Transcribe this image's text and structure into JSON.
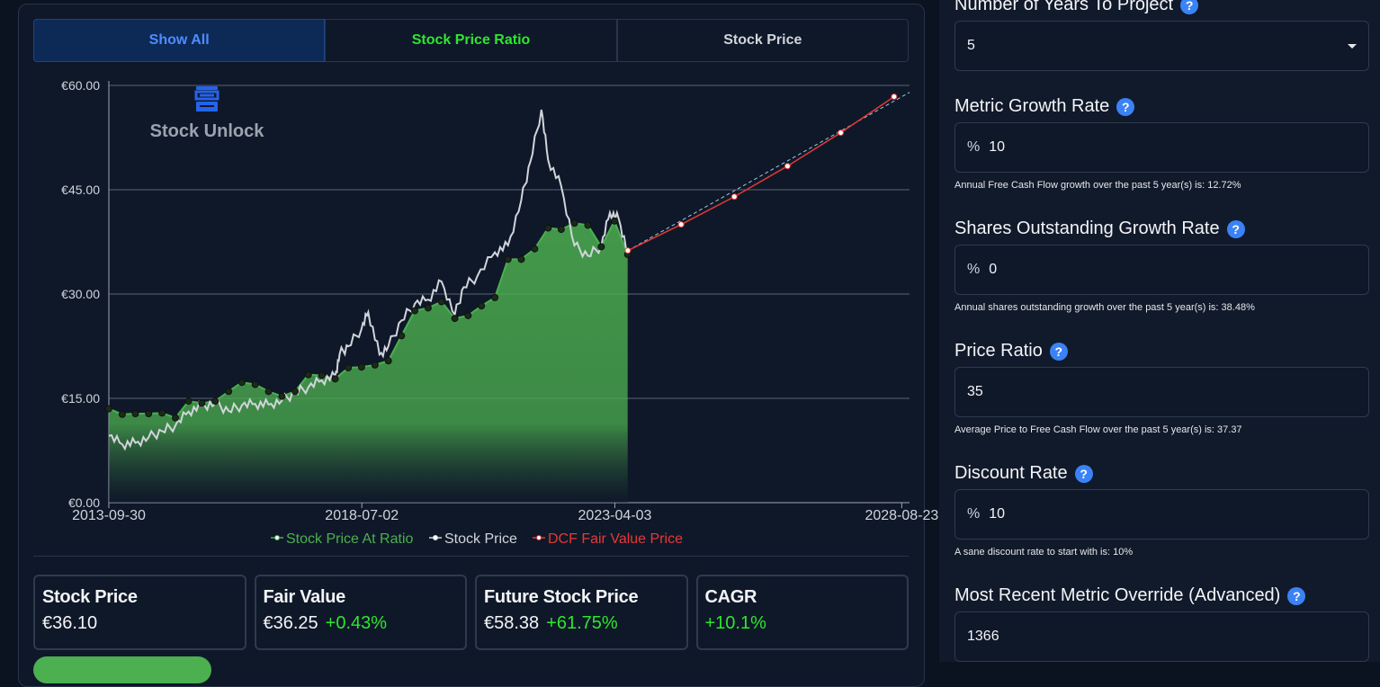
{
  "tabs": [
    {
      "label": "Show All"
    },
    {
      "label": "Stock Price Ratio"
    },
    {
      "label": "Stock Price"
    }
  ],
  "watermark": "Stock Unlock",
  "colors": {
    "ratio": "#4caf50",
    "price": "#d1d5db",
    "dcf": "#e53935",
    "accent": "#3b82f6",
    "positive": "#2ee62e"
  },
  "chart_data": {
    "type": "line",
    "y_ticks": [
      "€60.00",
      "€45.00",
      "€30.00",
      "€15.00",
      "€0.00"
    ],
    "x_ticks": [
      "2013-09-30",
      "2018-07-02",
      "2023-04-03",
      "2028-08-23"
    ],
    "ylim": [
      0,
      60
    ],
    "x_range": [
      "2013-09-30",
      "2028-10-15"
    ],
    "legend": [
      "Stock Price At Ratio",
      "Stock Price",
      "DCF Fair Value Price"
    ],
    "legend_position": "bottom",
    "series": [
      {
        "name": "Stock Price At Ratio",
        "type": "area",
        "points": [
          [
            "2013-09-30",
            13.5
          ],
          [
            "2013-12-31",
            12.7
          ],
          [
            "2014-03-31",
            12.8
          ],
          [
            "2014-06-30",
            12.8
          ],
          [
            "2014-09-30",
            12.9
          ],
          [
            "2014-12-31",
            12.2
          ],
          [
            "2015-03-31",
            14.6
          ],
          [
            "2015-06-30",
            14.3
          ],
          [
            "2015-09-30",
            14.6
          ],
          [
            "2015-12-31",
            16.0
          ],
          [
            "2016-03-31",
            17.3
          ],
          [
            "2016-06-30",
            17.0
          ],
          [
            "2016-09-30",
            16.0
          ],
          [
            "2016-12-31",
            15.3
          ],
          [
            "2017-03-31",
            16.0
          ],
          [
            "2017-06-30",
            18.4
          ],
          [
            "2017-09-30",
            18.3
          ],
          [
            "2017-12-31",
            17.8
          ],
          [
            "2018-03-31",
            19.4
          ],
          [
            "2018-06-30",
            19.5
          ],
          [
            "2018-09-30",
            19.8
          ],
          [
            "2018-12-31",
            20.4
          ],
          [
            "2019-03-31",
            24.0
          ],
          [
            "2019-06-30",
            27.6
          ],
          [
            "2019-09-30",
            28.0
          ],
          [
            "2019-12-31",
            28.9
          ],
          [
            "2020-03-31",
            26.5
          ],
          [
            "2020-06-30",
            26.9
          ],
          [
            "2020-09-30",
            28.3
          ],
          [
            "2020-12-31",
            29.5
          ],
          [
            "2021-03-31",
            35.0
          ],
          [
            "2021-06-30",
            35.0
          ],
          [
            "2021-09-30",
            36.5
          ],
          [
            "2021-12-31",
            39.5
          ],
          [
            "2022-03-31",
            39.3
          ],
          [
            "2022-06-30",
            40.2
          ],
          [
            "2022-09-30",
            39.9
          ],
          [
            "2022-12-31",
            36.8
          ],
          [
            "2023-03-31",
            40.5
          ],
          [
            "2023-06-30",
            35.7
          ]
        ]
      },
      {
        "name": "Stock Price",
        "type": "line",
        "points": [
          [
            "2013-09-30",
            9.6
          ],
          [
            "2013-12-31",
            8.4
          ],
          [
            "2014-03-31",
            8.6
          ],
          [
            "2014-06-30",
            9.4
          ],
          [
            "2014-09-30",
            10.3
          ],
          [
            "2014-12-31",
            11.1
          ],
          [
            "2015-03-31",
            13.1
          ],
          [
            "2015-06-30",
            13.9
          ],
          [
            "2015-09-30",
            14.3
          ],
          [
            "2015-12-31",
            13.2
          ],
          [
            "2016-03-31",
            14.0
          ],
          [
            "2016-06-30",
            14.2
          ],
          [
            "2016-09-30",
            14.1
          ],
          [
            "2016-12-31",
            14.7
          ],
          [
            "2017-03-31",
            15.8
          ],
          [
            "2017-06-30",
            16.6
          ],
          [
            "2017-09-30",
            17.6
          ],
          [
            "2017-12-31",
            18.2
          ],
          [
            "2018-01-31",
            21.4
          ],
          [
            "2018-03-31",
            22.5
          ],
          [
            "2018-06-30",
            25.0
          ],
          [
            "2018-08-15",
            27.4
          ],
          [
            "2018-10-31",
            21.3
          ],
          [
            "2018-12-31",
            22.5
          ],
          [
            "2019-03-31",
            26.2
          ],
          [
            "2019-06-30",
            28.6
          ],
          [
            "2019-09-30",
            29.2
          ],
          [
            "2019-12-31",
            31.8
          ],
          [
            "2020-03-31",
            27.0
          ],
          [
            "2020-05-31",
            31.0
          ],
          [
            "2020-08-31",
            32.5
          ],
          [
            "2020-12-31",
            36.0
          ],
          [
            "2021-03-31",
            37.0
          ],
          [
            "2021-06-30",
            43.5
          ],
          [
            "2021-08-31",
            49.0
          ],
          [
            "2021-11-15",
            56.5
          ],
          [
            "2021-12-31",
            49.3
          ],
          [
            "2022-03-31",
            45.5
          ],
          [
            "2022-06-30",
            37.0
          ],
          [
            "2022-09-30",
            35.5
          ],
          [
            "2022-12-31",
            36.9
          ],
          [
            "2023-02-28",
            41.7
          ],
          [
            "2023-04-30",
            40.8
          ],
          [
            "2023-06-30",
            36.1
          ]
        ]
      },
      {
        "name": "DCF Fair Value Price",
        "type": "line",
        "points": [
          [
            "2023-07-01",
            36.25
          ],
          [
            "2024-07-01",
            40.0
          ],
          [
            "2025-07-01",
            44.0
          ],
          [
            "2026-07-01",
            48.4
          ],
          [
            "2027-07-01",
            53.2
          ],
          [
            "2028-07-01",
            58.38
          ]
        ]
      }
    ],
    "projection": {
      "from": [
        "2023-07-01",
        36.25
      ],
      "to": [
        "2028-10-15",
        59.0
      ]
    }
  },
  "cards": [
    {
      "title": "Stock Price",
      "value": "€36.10",
      "change": ""
    },
    {
      "title": "Fair Value",
      "value": "€36.25",
      "change": "+0.43%"
    },
    {
      "title": "Future Stock Price",
      "value": "€58.38",
      "change": "+61.75%"
    },
    {
      "title": "CAGR",
      "value": "",
      "change": "+10.1%"
    }
  ],
  "form": {
    "years": {
      "label": "Number of Years To Project",
      "value": "5"
    },
    "metric_growth": {
      "label": "Metric Growth Rate",
      "prefix": "%",
      "value": "10",
      "hint": "Annual Free Cash Flow growth over the past 5 year(s) is: 12.72%"
    },
    "shares_growth": {
      "label": "Shares Outstanding Growth Rate",
      "prefix": "%",
      "value": "0",
      "hint": "Annual shares outstanding growth over the past 5 year(s) is: 38.48%"
    },
    "price_ratio": {
      "label": "Price Ratio",
      "value": "35",
      "hint": "Average Price to Free Cash Flow over the past 5 year(s) is: 37.37"
    },
    "discount_rate": {
      "label": "Discount Rate",
      "prefix": "%",
      "value": "10",
      "hint": "A sane discount rate to start with is: 10%"
    },
    "metric_override": {
      "label": "Most Recent Metric Override (Advanced)",
      "value": "1366"
    }
  },
  "help_glyph": "?"
}
